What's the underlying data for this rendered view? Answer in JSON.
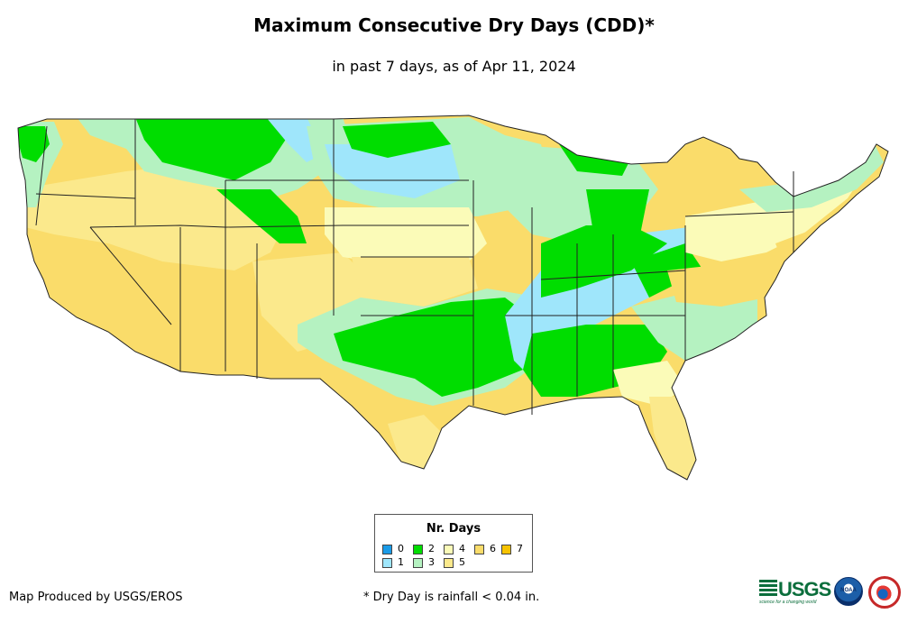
{
  "title": "Maximum Consecutive Dry Days (CDD)*",
  "subtitle": "in past 7 days, as of Apr 11, 2024",
  "legend": {
    "title": "Nr. Days",
    "items": [
      {
        "label": "0",
        "color": "#1a9be8"
      },
      {
        "label": "1",
        "color": "#9fe6fb"
      },
      {
        "label": "2",
        "color": "#00dd00"
      },
      {
        "label": "3",
        "color": "#b5f2c1"
      },
      {
        "label": "4",
        "color": "#fbfbb8"
      },
      {
        "label": "5",
        "color": "#fbe98c"
      },
      {
        "label": "6",
        "color": "#fadc6a"
      },
      {
        "label": "7",
        "color": "#f7c300"
      }
    ]
  },
  "credit": "Map Produced by USGS/EROS",
  "footnote": "* Dry Day is rainfall < 0.04 in.",
  "logos": {
    "usgs": "USGS",
    "usgs_tagline": "science for a changing world",
    "noaa": "NOAA",
    "nws": "National Weather Service"
  },
  "map": {
    "region": "Contiguous United States",
    "region_colors_by_days": {
      "west_interior": "6",
      "southwest": "6",
      "pacific_northwest_coast": "3",
      "northern_rockies": "2",
      "north_dakota_minnesota": "1",
      "mississippi_valley_band": "1",
      "ohio_valley_band": "2",
      "deep_south": "2",
      "florida": "5",
      "northeast": "4"
    }
  }
}
